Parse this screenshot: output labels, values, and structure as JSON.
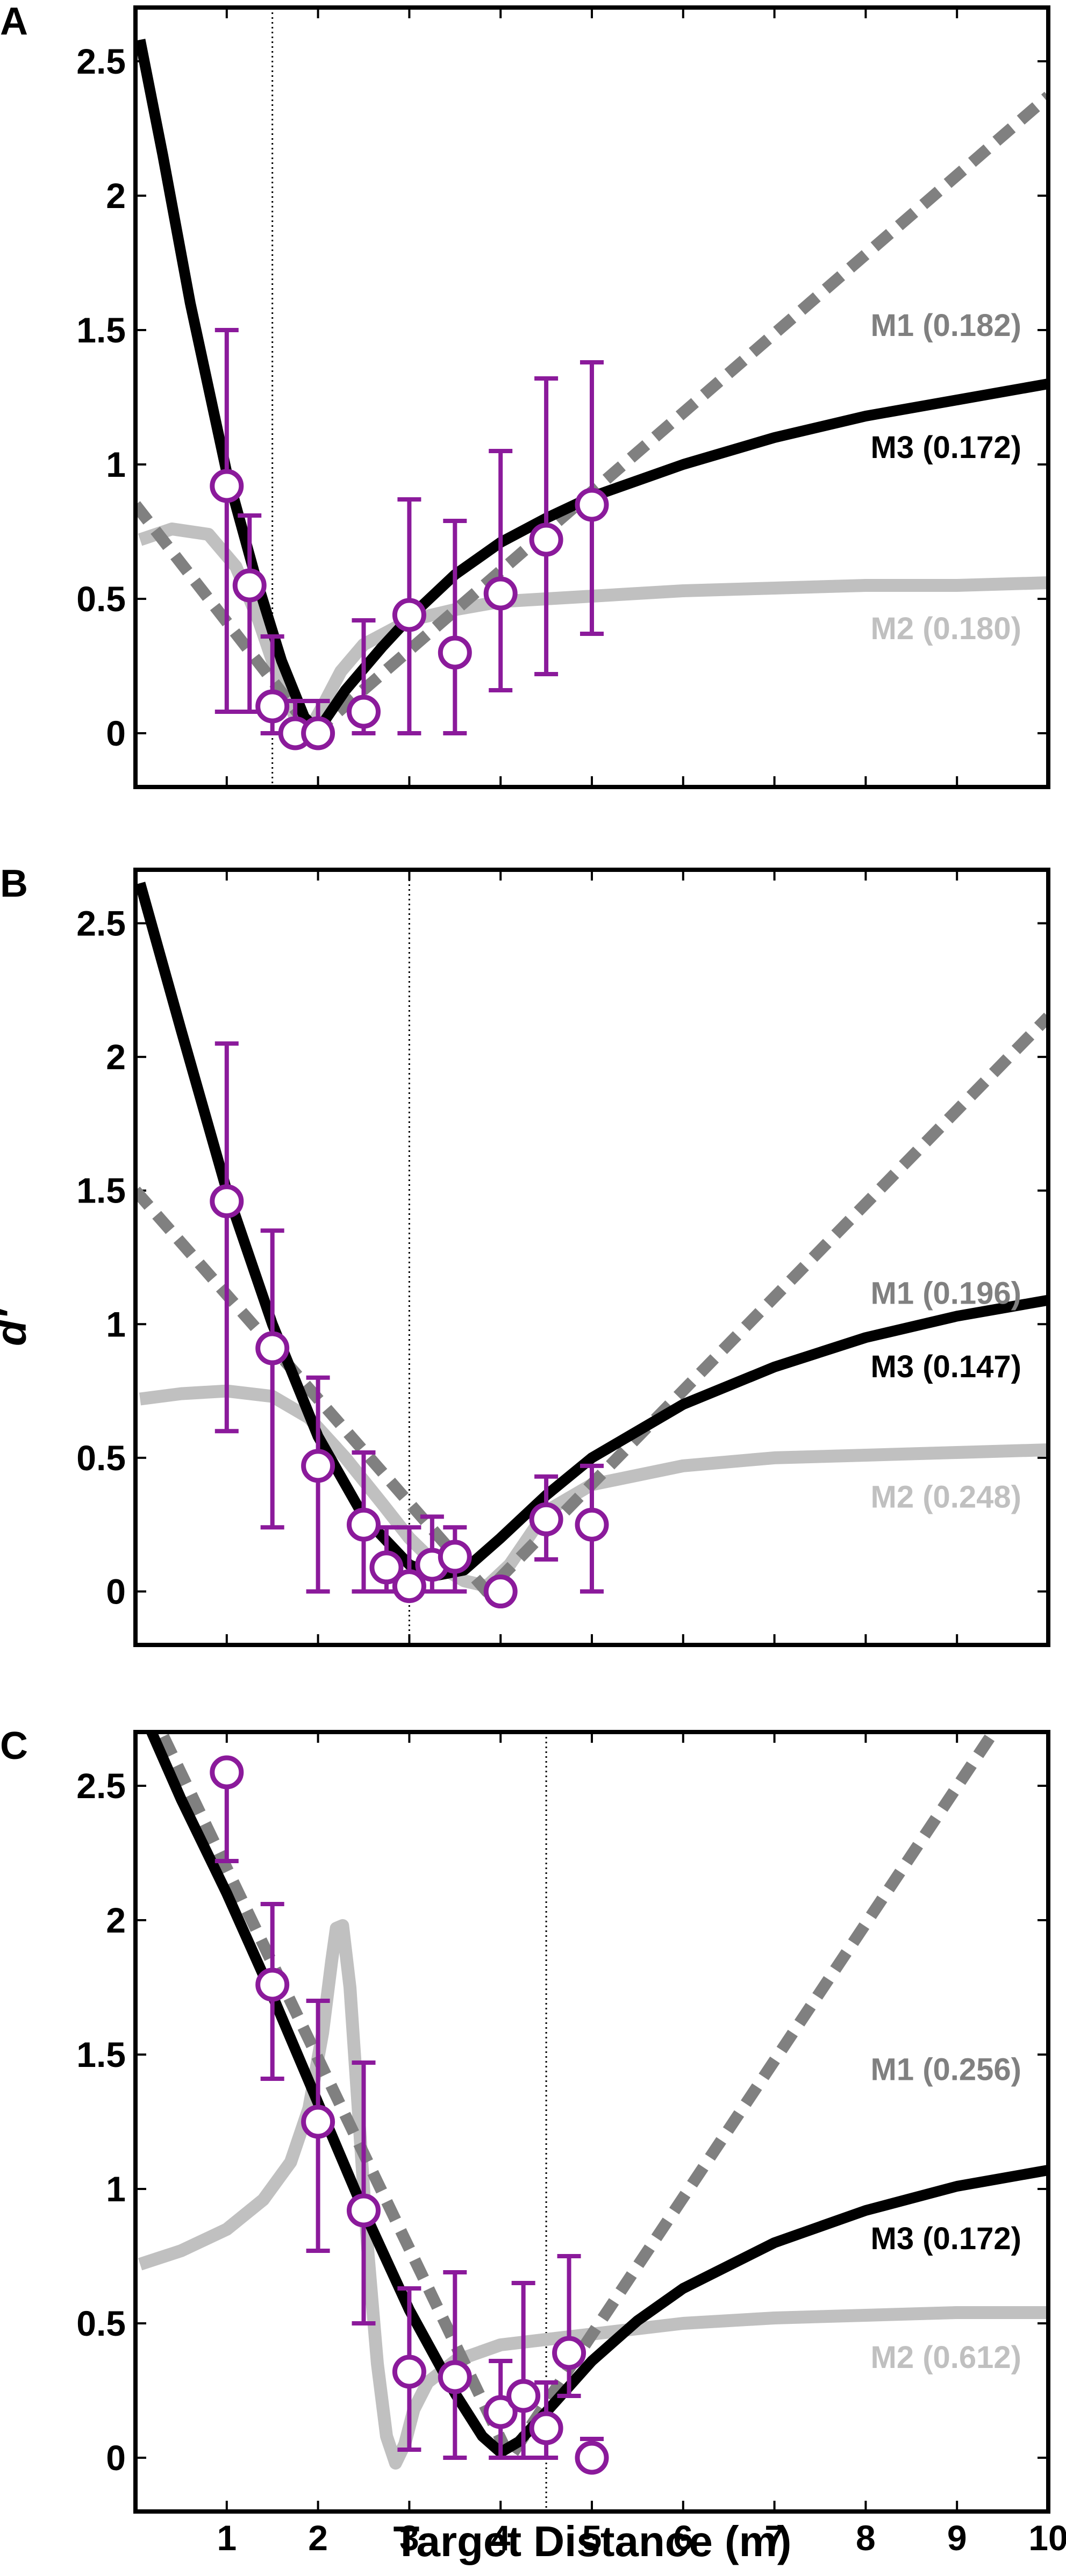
{
  "chart_data": {
    "figure": {
      "xlabel": "Target Distance (m)",
      "ylabel": "d′",
      "x_ticks": [
        "1",
        "2",
        "3",
        "4",
        "5",
        "6",
        "7",
        "8",
        "9",
        "10"
      ],
      "y_ticks": [
        "0",
        "0.5",
        "1",
        "1.5",
        "2",
        "2.5"
      ],
      "colors": {
        "M1": "#808080",
        "M2": "#c0c0c0",
        "M3": "#000000",
        "data": "#8b1a9b",
        "reference_line": "#000000"
      }
    },
    "panels": [
      {
        "type": "line",
        "panel_label": "A",
        "xlim": [
          0,
          10
        ],
        "ylim": [
          -0.2,
          2.7
        ],
        "grid": false,
        "reference_x": 1.5,
        "series": [
          {
            "name": "M1",
            "fit": "(0.182)",
            "style": "dashed",
            "x": [
              0,
              1.95,
              10
            ],
            "y": [
              0.85,
              0.0,
              2.37
            ]
          },
          {
            "name": "M2",
            "fit": "(0.180)",
            "style": "solid-light",
            "x": [
              0.05,
              0.4,
              0.8,
              1.1,
              1.35,
              1.55,
              1.75,
              1.9,
              2.05,
              2.25,
              2.5,
              3.0,
              3.5,
              4.0,
              5.0,
              6.0,
              7.0,
              8.0,
              9.0,
              10.0
            ],
            "y": [
              0.72,
              0.76,
              0.74,
              0.62,
              0.42,
              0.22,
              0.06,
              0.01,
              0.1,
              0.23,
              0.33,
              0.42,
              0.46,
              0.49,
              0.51,
              0.53,
              0.54,
              0.55,
              0.55,
              0.56
            ]
          },
          {
            "name": "M3",
            "fit": "(0.172)",
            "style": "solid",
            "x": [
              0.05,
              0.3,
              0.6,
              1.0,
              1.3,
              1.6,
              1.85,
              2.0,
              2.3,
              2.7,
              3.0,
              3.5,
              4.0,
              4.5,
              5.0,
              6.0,
              7.0,
              8.0,
              9.0,
              10.0
            ],
            "y": [
              2.58,
              2.15,
              1.6,
              0.97,
              0.6,
              0.27,
              0.06,
              0.01,
              0.16,
              0.32,
              0.43,
              0.59,
              0.71,
              0.8,
              0.88,
              1.0,
              1.1,
              1.18,
              1.24,
              1.3
            ]
          },
          {
            "name": "Data",
            "style": "points",
            "x": [
              1.0,
              1.25,
              1.5,
              1.75,
              2.0,
              2.5,
              3.0,
              3.5,
              4.0,
              4.5,
              5.0
            ],
            "y": [
              0.92,
              0.55,
              0.1,
              0.0,
              0.0,
              0.08,
              0.44,
              0.3,
              0.52,
              0.72,
              0.85
            ],
            "err_low": [
              0.08,
              0.08,
              0.0,
              0.0,
              0.0,
              0.0,
              0.0,
              0.0,
              0.16,
              0.22,
              0.37
            ],
            "err_high": [
              1.5,
              0.81,
              0.36,
              0.12,
              0.12,
              0.42,
              0.87,
              0.79,
              1.05,
              1.32,
              1.38
            ]
          }
        ]
      },
      {
        "type": "line",
        "panel_label": "B",
        "xlim": [
          0,
          10
        ],
        "ylim": [
          -0.2,
          2.7
        ],
        "grid": false,
        "reference_x": 3.0,
        "series": [
          {
            "name": "M1",
            "fit": "(0.196)",
            "style": "dashed",
            "x": [
              0,
              3.85,
              10
            ],
            "y": [
              1.5,
              0.0,
              2.15
            ]
          },
          {
            "name": "M2",
            "fit": "(0.248)",
            "style": "solid-light",
            "x": [
              0.05,
              0.5,
              1.0,
              1.5,
              1.9,
              2.3,
              2.7,
              3.0,
              3.3,
              3.6,
              3.85,
              4.1,
              4.5,
              5.0,
              6.0,
              7.0,
              8.0,
              9.0,
              10.0
            ],
            "y": [
              0.72,
              0.74,
              0.75,
              0.73,
              0.65,
              0.5,
              0.33,
              0.2,
              0.1,
              0.04,
              0.02,
              0.1,
              0.3,
              0.4,
              0.47,
              0.5,
              0.51,
              0.52,
              0.53
            ]
          },
          {
            "name": "M3",
            "fit": "(0.147)",
            "style": "solid",
            "x": [
              0.05,
              0.5,
              1.0,
              1.5,
              2.0,
              2.5,
              3.0,
              3.3,
              3.6,
              4.0,
              4.5,
              5.0,
              6.0,
              7.0,
              8.0,
              9.0,
              10.0
            ],
            "y": [
              2.65,
              2.1,
              1.5,
              1.0,
              0.58,
              0.28,
              0.1,
              0.06,
              0.08,
              0.2,
              0.36,
              0.5,
              0.7,
              0.84,
              0.95,
              1.03,
              1.09
            ]
          },
          {
            "name": "Data",
            "style": "points",
            "x": [
              1.0,
              1.5,
              2.0,
              2.5,
              2.75,
              3.0,
              3.25,
              3.5,
              4.0,
              4.5,
              5.0
            ],
            "y": [
              1.46,
              0.91,
              0.47,
              0.25,
              0.09,
              0.02,
              0.1,
              0.13,
              0.0,
              0.27,
              0.25
            ],
            "err_low": [
              0.6,
              0.24,
              0.0,
              0.0,
              0.0,
              0.0,
              0.0,
              0.0,
              0.0,
              0.12,
              0.0
            ],
            "err_high": [
              2.05,
              1.35,
              0.8,
              0.52,
              0.24,
              0.24,
              0.28,
              0.24,
              0.0,
              0.43,
              0.47
            ]
          }
        ]
      },
      {
        "type": "line",
        "panel_label": "C",
        "xlim": [
          0,
          10
        ],
        "ylim": [
          -0.2,
          2.7
        ],
        "grid": false,
        "reference_x": 4.5,
        "series": [
          {
            "name": "M1",
            "fit": "(0.256)",
            "style": "dashed",
            "x": [
              0,
              4.1,
              9.4
            ],
            "y": [
              2.9,
              0.0,
              2.7
            ]
          },
          {
            "name": "M2",
            "fit": "(0.612)",
            "style": "solid-light",
            "x": [
              0.05,
              0.5,
              1.0,
              1.4,
              1.7,
              1.9,
              2.05,
              2.15,
              2.2,
              2.27,
              2.35,
              2.45,
              2.55,
              2.65,
              2.75,
              2.85,
              2.95,
              3.05,
              3.2,
              3.5,
              4.0,
              5.0,
              6.0,
              7.0,
              8.0,
              9.0,
              10.0
            ],
            "y": [
              0.72,
              0.77,
              0.85,
              0.96,
              1.1,
              1.3,
              1.58,
              1.85,
              1.97,
              1.98,
              1.75,
              1.25,
              0.75,
              0.35,
              0.08,
              -0.02,
              0.05,
              0.18,
              0.28,
              0.36,
              0.42,
              0.46,
              0.5,
              0.52,
              0.53,
              0.54,
              0.54
            ]
          },
          {
            "name": "M3",
            "fit": "(0.172)",
            "style": "solid",
            "x": [
              0.15,
              0.5,
              1.0,
              1.5,
              2.0,
              2.5,
              3.0,
              3.5,
              3.8,
              4.0,
              4.2,
              4.5,
              5.0,
              5.5,
              6.0,
              7.0,
              8.0,
              9.0,
              10.0
            ],
            "y": [
              2.72,
              2.45,
              2.1,
              1.72,
              1.32,
              0.92,
              0.55,
              0.24,
              0.08,
              0.02,
              0.06,
              0.17,
              0.36,
              0.51,
              0.63,
              0.8,
              0.92,
              1.01,
              1.07
            ]
          },
          {
            "name": "Data",
            "style": "points",
            "x": [
              1.0,
              1.5,
              2.0,
              2.5,
              3.0,
              3.5,
              4.0,
              4.25,
              4.5,
              4.75,
              5.0
            ],
            "y": [
              2.55,
              1.76,
              1.25,
              0.92,
              0.32,
              0.3,
              0.17,
              0.23,
              0.11,
              0.39,
              0.0
            ],
            "err_low": [
              2.22,
              1.41,
              0.77,
              0.5,
              0.03,
              0.0,
              0.0,
              0.0,
              0.0,
              0.23,
              0.0
            ],
            "err_high": [
              2.55,
              2.06,
              1.7,
              1.47,
              0.63,
              0.69,
              0.36,
              0.65,
              0.28,
              0.75,
              0.07
            ]
          }
        ]
      }
    ]
  }
}
